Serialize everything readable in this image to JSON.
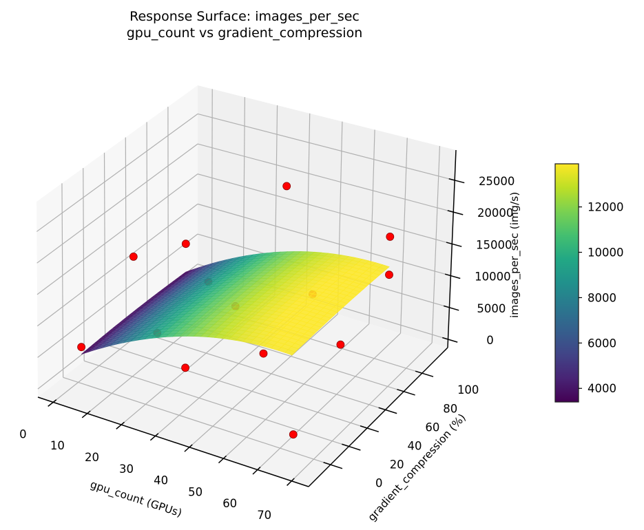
{
  "chart_data": {
    "type": "surface3d",
    "title": "Response Surface: images_per_sec",
    "subtitle": "gpu_count vs gradient_compression",
    "xlabel": "gpu_count (GPUs)",
    "ylabel": "gradient_compression (%)",
    "zlabel": "images_per_sec (img/s)",
    "x_ticks": [
      0,
      10,
      20,
      30,
      40,
      50,
      60,
      70
    ],
    "y_ticks": [
      0,
      20,
      40,
      60,
      80,
      100
    ],
    "z_ticks": [
      0,
      5000,
      10000,
      15000,
      20000,
      25000
    ],
    "xlim": [
      -4.5,
      75
    ],
    "ylim": [
      -24,
      128
    ],
    "zlim": [
      -1300,
      29750
    ],
    "colormap": "viridis",
    "colorbar": {
      "min": 3400,
      "max": 13900,
      "ticks": [
        4000,
        6000,
        8000,
        10000,
        12000
      ]
    },
    "surface_model": "z = 3000 + 360*x - 3*x^2 + 10*y - 0.1*y^2",
    "surface_domain": {
      "x": [
        1,
        64
      ],
      "y": [
        0,
        100
      ]
    },
    "observed_points": [
      {
        "x": 1,
        "y": 0,
        "z": 4500
      },
      {
        "x": 1,
        "y": 50,
        "z": 12500
      },
      {
        "x": 1,
        "y": 100,
        "z": 8000
      },
      {
        "x": 32,
        "y": 0,
        "z": 6500
      },
      {
        "x": 32,
        "y": 50,
        "z": 9500
      },
      {
        "x": 32,
        "y": 100,
        "z": 22000
      },
      {
        "x": 64,
        "y": 0,
        "z": 1500
      },
      {
        "x": 64,
        "y": 50,
        "z": 8500
      },
      {
        "x": 64,
        "y": 100,
        "z": 12500
      },
      {
        "x": 16,
        "y": 25,
        "z": 6000
      },
      {
        "x": 16,
        "y": 75,
        "z": 7500
      },
      {
        "x": 48,
        "y": 25,
        "z": 8000
      },
      {
        "x": 48,
        "y": 75,
        "z": 10500
      },
      {
        "x": 64,
        "y": 100,
        "z": 18500
      }
    ],
    "point_color": "#ff0000",
    "grid": true
  },
  "labels": {
    "title_line1": "Response Surface: images_per_sec",
    "title_line2": "gpu_count vs gradient_compression"
  }
}
